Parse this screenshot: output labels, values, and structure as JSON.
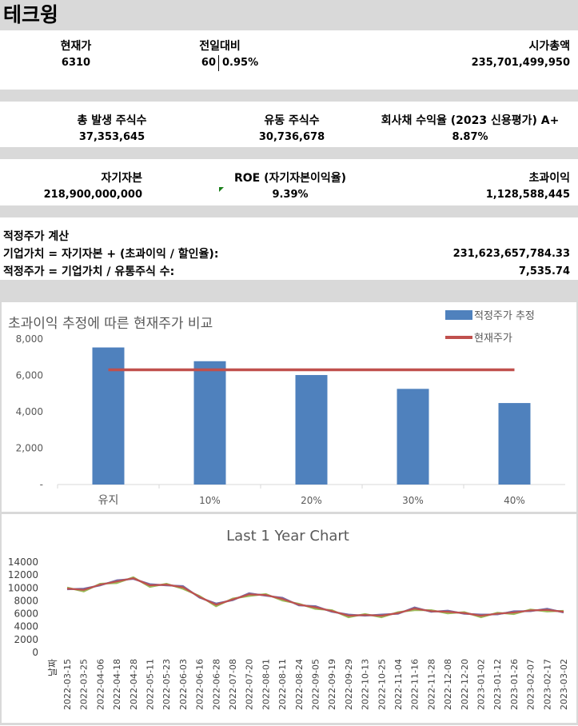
{
  "company": "테크윙",
  "summary": {
    "price_label": "현재가",
    "price_value": "6310",
    "change_label": "전일대비",
    "change_amount": "60",
    "change_percent": "0.95%",
    "mcap_label": "시가총액",
    "mcap_value": "235,701,499,950"
  },
  "shares": {
    "total_label": "총 발생 주식수",
    "total_value": "37,353,645",
    "float_label": "유동 주식수",
    "float_value": "30,736,678",
    "yield_label": "회사채 수익율 (2023 신용평가) A+",
    "yield_value": "8.87%"
  },
  "equity": {
    "equity_label": "자기자본",
    "equity_value": "218,900,000,000",
    "roe_label": "ROE (자기자본이익율)",
    "roe_value": "9.39%",
    "excess_label": "초과이익",
    "excess_value": "1,128,588,445"
  },
  "calc": {
    "heading": "적정주가 계산",
    "ev_label": "기업가치 = 자기자본 + (초과이익 / 할인율):",
    "ev_value": "231,623,657,784.33",
    "fair_label": "적정주가 = 기업가치 / 유통주식 수:",
    "fair_value": "7,535.74"
  },
  "colors": {
    "band": "#d9d9d9",
    "bar": "#4f81bd",
    "line": "#c0504d"
  },
  "chart_data": [
    {
      "type": "bar",
      "title": "초과이익 추정에 따른 현재주가 비교",
      "categories": [
        "유지",
        "10%",
        "20%",
        "30%",
        "40%"
      ],
      "series": [
        {
          "name": "적정주가 추정",
          "values": [
            7536,
            6780,
            6020,
            5260,
            4480
          ]
        },
        {
          "name": "현재주가",
          "values": [
            6310,
            6310,
            6310,
            6310,
            6310
          ]
        }
      ],
      "ylim": [
        0,
        8000
      ],
      "yticks": [
        "-",
        "2,000",
        "4,000",
        "6,000",
        "8,000"
      ],
      "legend": "top-right"
    },
    {
      "type": "line",
      "title": "Last 1 Year Chart",
      "xlabel": "날짜",
      "ylim": [
        0,
        14000
      ],
      "yticks": [
        "0",
        "2000",
        "4000",
        "6000",
        "8000",
        "10000",
        "12000",
        "14000"
      ],
      "x": [
        "2022-03-15",
        "2022-03-25",
        "2022-04-06",
        "2022-04-18",
        "2022-04-28",
        "2022-05-11",
        "2022-05-23",
        "2022-06-03",
        "2022-06-16",
        "2022-06-28",
        "2022-07-08",
        "2022-07-20",
        "2022-08-01",
        "2022-08-11",
        "2022-08-24",
        "2022-09-05",
        "2022-09-19",
        "2022-09-29",
        "2022-10-13",
        "2022-10-25",
        "2022-11-04",
        "2022-11-16",
        "2022-11-28",
        "2022-12-08",
        "2022-12-20",
        "2023-01-02",
        "2023-01-12",
        "2023-01-26",
        "2023-02-07",
        "2023-02-17",
        "2023-03-02"
      ],
      "series": [
        {
          "values": [
            9900,
            9700,
            10500,
            11000,
            11500,
            10400,
            10500,
            10100,
            8600,
            7400,
            8200,
            9000,
            8900,
            8300,
            7400,
            7000,
            6400,
            5700,
            5800,
            5700,
            6100,
            6800,
            6400,
            6300,
            6100,
            5700,
            6000,
            6200,
            6500,
            6600,
            6300
          ]
        }
      ]
    }
  ]
}
